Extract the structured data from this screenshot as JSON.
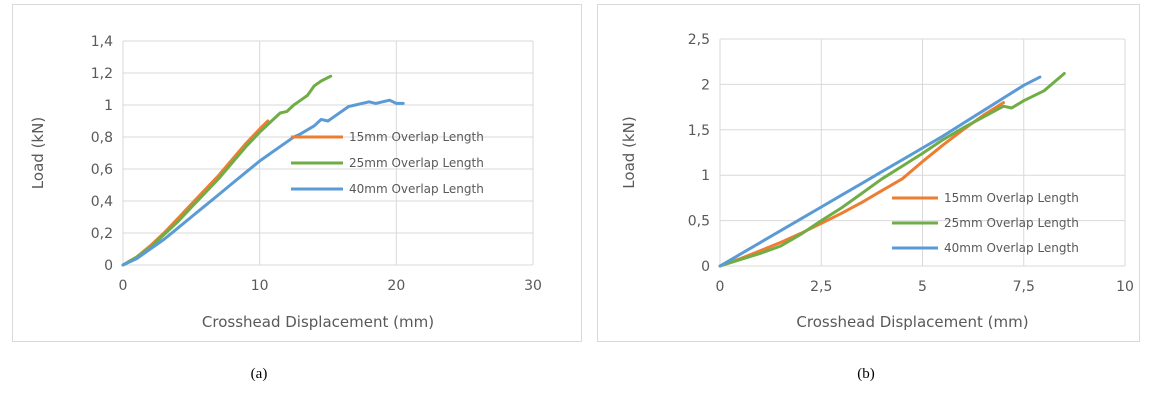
{
  "chart_data": [
    {
      "type": "line",
      "panel_label": "(a)",
      "xlabel": "Crosshead Displacement (mm)",
      "ylabel": "Load (kN)",
      "xlim": [
        0,
        30
      ],
      "ylim": [
        0,
        1.4
      ],
      "x_ticks": [
        "0",
        "10",
        "20",
        "30"
      ],
      "y_ticks": [
        "0",
        "0,2",
        "0,4",
        "0,6",
        "0,8",
        "1",
        "1,2",
        "1,4"
      ],
      "x_tick_values": [
        0,
        10,
        20,
        30
      ],
      "y_tick_values": [
        0,
        0.2,
        0.4,
        0.6,
        0.8,
        1.0,
        1.2,
        1.4
      ],
      "grid": true,
      "legend_position": "right",
      "series": [
        {
          "name": "15mm Overlap Length",
          "color": "#ed7d31",
          "x": [
            0,
            1,
            2,
            3,
            4,
            5,
            6,
            7,
            8,
            9,
            10,
            10.6
          ],
          "y": [
            0,
            0.05,
            0.12,
            0.2,
            0.29,
            0.38,
            0.47,
            0.56,
            0.66,
            0.76,
            0.85,
            0.9
          ]
        },
        {
          "name": "25mm Overlap Length",
          "color": "#70ad47",
          "x": [
            0,
            1,
            2,
            3,
            4,
            5,
            6,
            7,
            8,
            9,
            10,
            11,
            11.5,
            12,
            12.5,
            13,
            13.5,
            14,
            14.5,
            15.2
          ],
          "y": [
            0,
            0.05,
            0.11,
            0.19,
            0.27,
            0.36,
            0.45,
            0.54,
            0.64,
            0.74,
            0.83,
            0.91,
            0.95,
            0.96,
            1.0,
            1.03,
            1.06,
            1.12,
            1.15,
            1.18
          ]
        },
        {
          "name": "40mm Overlap Length",
          "color": "#5b9bd5",
          "x": [
            0,
            1,
            2,
            3,
            4,
            5,
            6,
            7,
            8,
            9,
            10,
            11,
            12,
            12.5,
            13,
            14,
            14.5,
            15,
            15.5,
            16,
            16.5,
            17,
            17.5,
            18,
            18.5,
            19,
            19.5,
            20,
            20.5
          ],
          "y": [
            0,
            0.04,
            0.1,
            0.16,
            0.23,
            0.3,
            0.37,
            0.44,
            0.51,
            0.58,
            0.65,
            0.71,
            0.77,
            0.8,
            0.82,
            0.87,
            0.91,
            0.9,
            0.93,
            0.96,
            0.99,
            1.0,
            1.01,
            1.02,
            1.01,
            1.02,
            1.03,
            1.01,
            1.01
          ]
        }
      ]
    },
    {
      "type": "line",
      "panel_label": "(b)",
      "xlabel": "Crosshead Displacement (mm)",
      "ylabel": "Load (kN)",
      "xlim": [
        0,
        10
      ],
      "ylim": [
        0,
        2.5
      ],
      "x_ticks": [
        "0",
        "2,5",
        "5",
        "7,5",
        "10"
      ],
      "y_ticks": [
        "0",
        "0,5",
        "1",
        "1,5",
        "2",
        "2,5"
      ],
      "x_tick_values": [
        0,
        2.5,
        5,
        7.5,
        10
      ],
      "y_tick_values": [
        0,
        0.5,
        1.0,
        1.5,
        2.0,
        2.5
      ],
      "grid": true,
      "legend_position": "bottom-right",
      "series": [
        {
          "name": "15mm Overlap Length",
          "color": "#ed7d31",
          "x": [
            0,
            0.5,
            1,
            1.5,
            2,
            2.5,
            3,
            3.5,
            4,
            4.5,
            5,
            5.5,
            6,
            6.5,
            7
          ],
          "y": [
            0,
            0.08,
            0.17,
            0.26,
            0.36,
            0.47,
            0.58,
            0.7,
            0.83,
            0.96,
            1.15,
            1.33,
            1.5,
            1.66,
            1.8
          ]
        },
        {
          "name": "25mm Overlap Length",
          "color": "#70ad47",
          "x": [
            0,
            0.5,
            1,
            1.5,
            2,
            2.5,
            3,
            3.5,
            4,
            4.5,
            5,
            5.5,
            6,
            6.5,
            7,
            7.2,
            7.5,
            8,
            8.5
          ],
          "y": [
            0,
            0.07,
            0.14,
            0.22,
            0.35,
            0.5,
            0.64,
            0.8,
            0.96,
            1.1,
            1.24,
            1.39,
            1.52,
            1.64,
            1.76,
            1.74,
            1.82,
            1.93,
            2.12
          ]
        },
        {
          "name": "40mm Overlap Length",
          "color": "#5b9bd5",
          "x": [
            0,
            0.5,
            1,
            1.5,
            2,
            2.5,
            3,
            3.5,
            4,
            4.5,
            5,
            5.5,
            6,
            6.5,
            7,
            7.5,
            7.9
          ],
          "y": [
            0,
            0.13,
            0.26,
            0.39,
            0.52,
            0.65,
            0.78,
            0.91,
            1.04,
            1.17,
            1.3,
            1.43,
            1.57,
            1.71,
            1.85,
            1.99,
            2.08
          ]
        }
      ]
    }
  ]
}
